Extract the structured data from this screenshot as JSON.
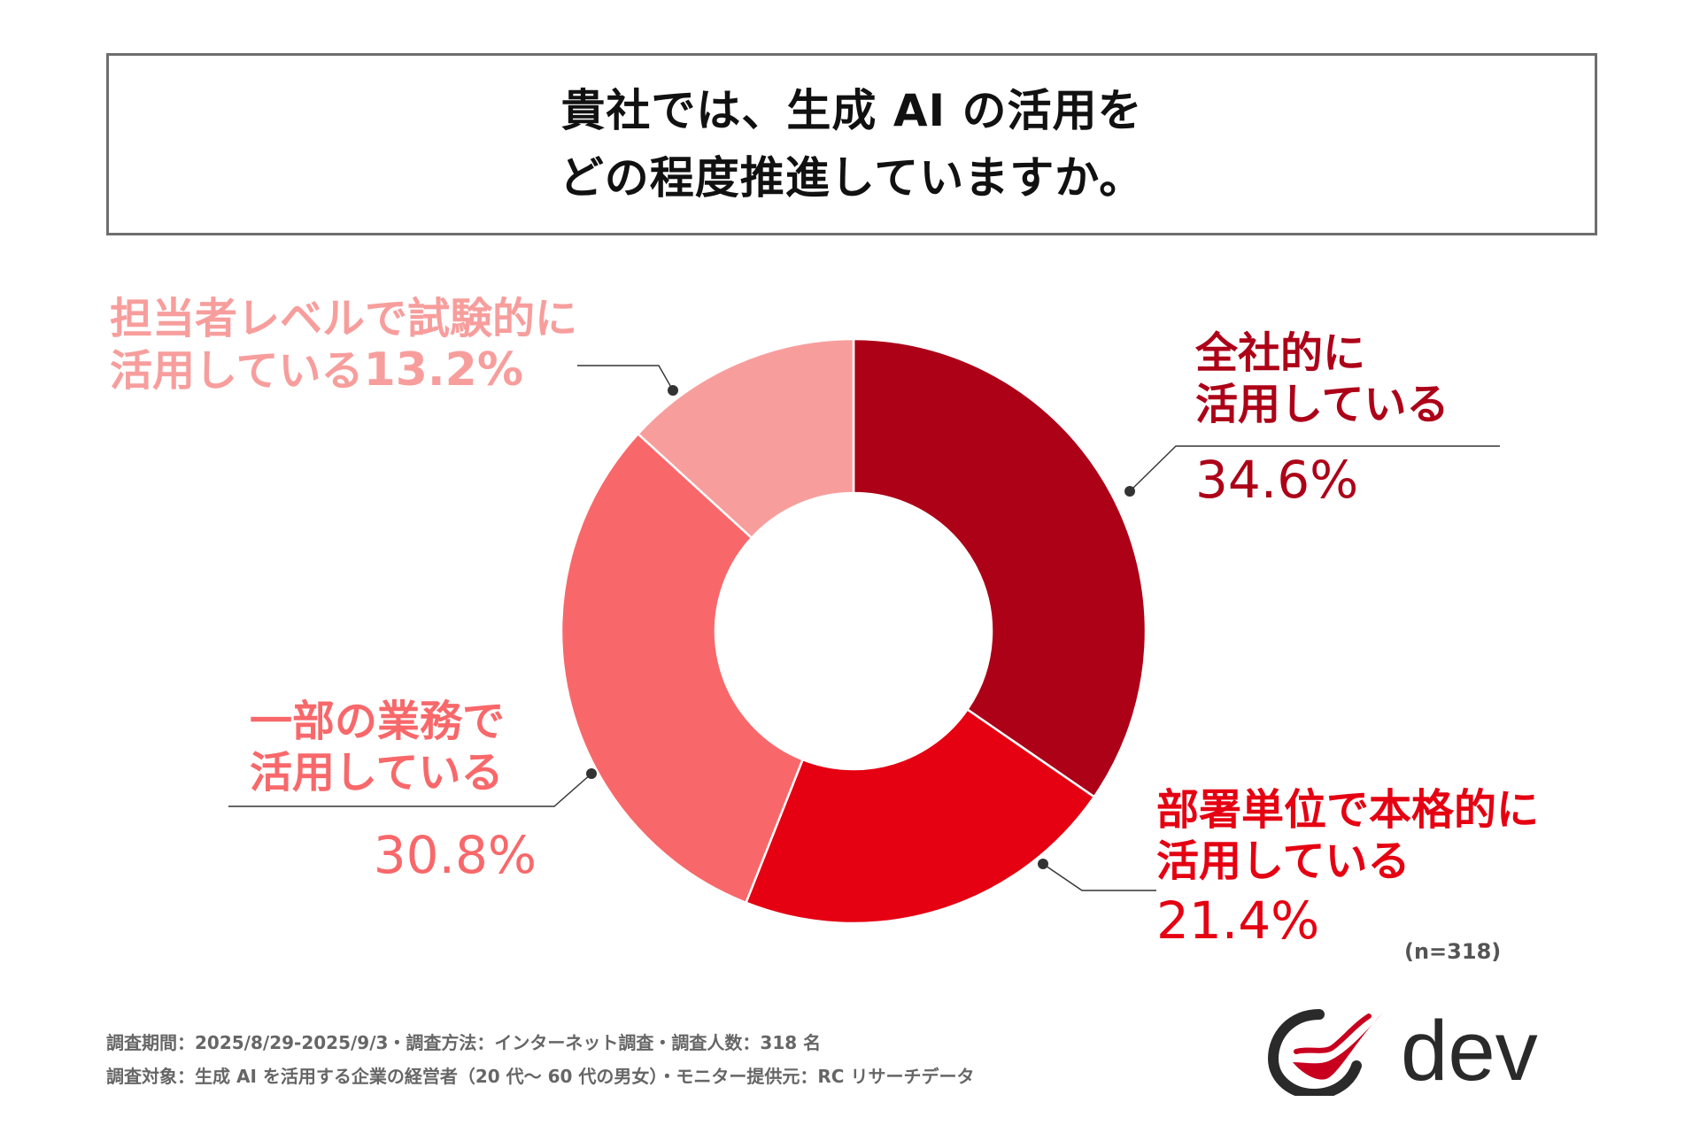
{
  "title": {
    "line1": "貴社では、生成 AI の活用を",
    "line2": "どの程度推進していますか。"
  },
  "chart_data": {
    "type": "pie",
    "variant": "donut",
    "title": "貴社では、生成 AI の活用をどの程度推進していますか。",
    "categories": [
      "全社的に活用している",
      "部署単位で本格的に活用している",
      "一部の業務で活用している",
      "担当者レベルで試験的に活用している"
    ],
    "values": [
      34.6,
      21.4,
      30.8,
      13.2
    ],
    "unit": "%",
    "colors": [
      "#ad0118",
      "#e50012",
      "#f8686a",
      "#f79e9d"
    ],
    "n": 318
  },
  "labels": {
    "a": {
      "line1": "全社的に",
      "line2": "活用している",
      "pct": "34.6%"
    },
    "b": {
      "line1": "部署単位で本格的に",
      "line2": "活用している",
      "pct": "21.4%"
    },
    "c": {
      "line1": "一部の業務で",
      "line2": "活用している",
      "pct": "30.8%"
    },
    "d": {
      "line1": "担当者レベルで試験的に",
      "line2": "活用している",
      "pct": "13.2%"
    }
  },
  "note_n": "(n=318)",
  "footer": {
    "line1": "調査期間：2025/8/29-2025/9/3・調査方法：インターネット調査・調査人数：318 名",
    "line2": "調査対象：生成 AI を活用する企業の経営者（20 代〜 60 代の男女）・モニター提供元：RC リサーチデータ"
  },
  "logo": {
    "text": "dev",
    "color": "#2a2a2a",
    "accent": "#c8001e"
  }
}
